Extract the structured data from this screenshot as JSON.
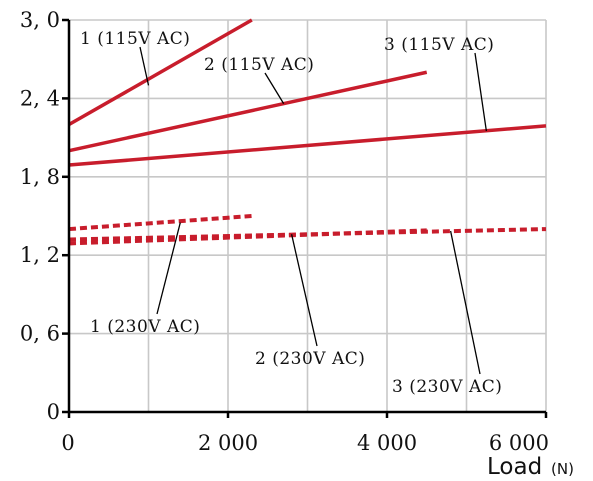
{
  "chart_data": {
    "type": "line",
    "xlabel": "Load",
    "xunit": "(N)",
    "ylabel": "",
    "xlim": [
      0,
      6000
    ],
    "ylim": [
      0,
      3.0
    ],
    "x_ticks": [
      0,
      2000,
      4000,
      6000
    ],
    "x_tick_labels": [
      "0",
      "2 000",
      "4 000",
      "6 000"
    ],
    "y_ticks": [
      0,
      0.6,
      1.2,
      1.8,
      2.4,
      3.0
    ],
    "y_tick_labels": [
      "0",
      "0, 6",
      "1, 2",
      "1, 8",
      "2, 4",
      "3, 0"
    ],
    "grid": true,
    "colors": {
      "series": "#c81d2c",
      "grid": "#c8c8c8",
      "axis": "#000000"
    },
    "series": [
      {
        "name": "1 (115V AC)",
        "style": "solid",
        "x": [
          0,
          2300
        ],
        "y": [
          2.2,
          3.0
        ]
      },
      {
        "name": "2 (115V AC)",
        "style": "solid",
        "x": [
          0,
          4500
        ],
        "y": [
          2.0,
          2.6
        ]
      },
      {
        "name": "3 (115V AC)",
        "style": "solid",
        "x": [
          0,
          6000
        ],
        "y": [
          1.89,
          2.19
        ]
      },
      {
        "name": "1 (230V AC)",
        "style": "dashed",
        "x": [
          0,
          2300
        ],
        "y": [
          1.4,
          1.5
        ]
      },
      {
        "name": "2 (230V AC)",
        "style": "dashed",
        "x": [
          0,
          4500
        ],
        "y": [
          1.29,
          1.39
        ]
      },
      {
        "name": "3 (230V AC)",
        "style": "dashed",
        "x": [
          0,
          6000
        ],
        "y": [
          1.32,
          1.4
        ]
      }
    ]
  }
}
